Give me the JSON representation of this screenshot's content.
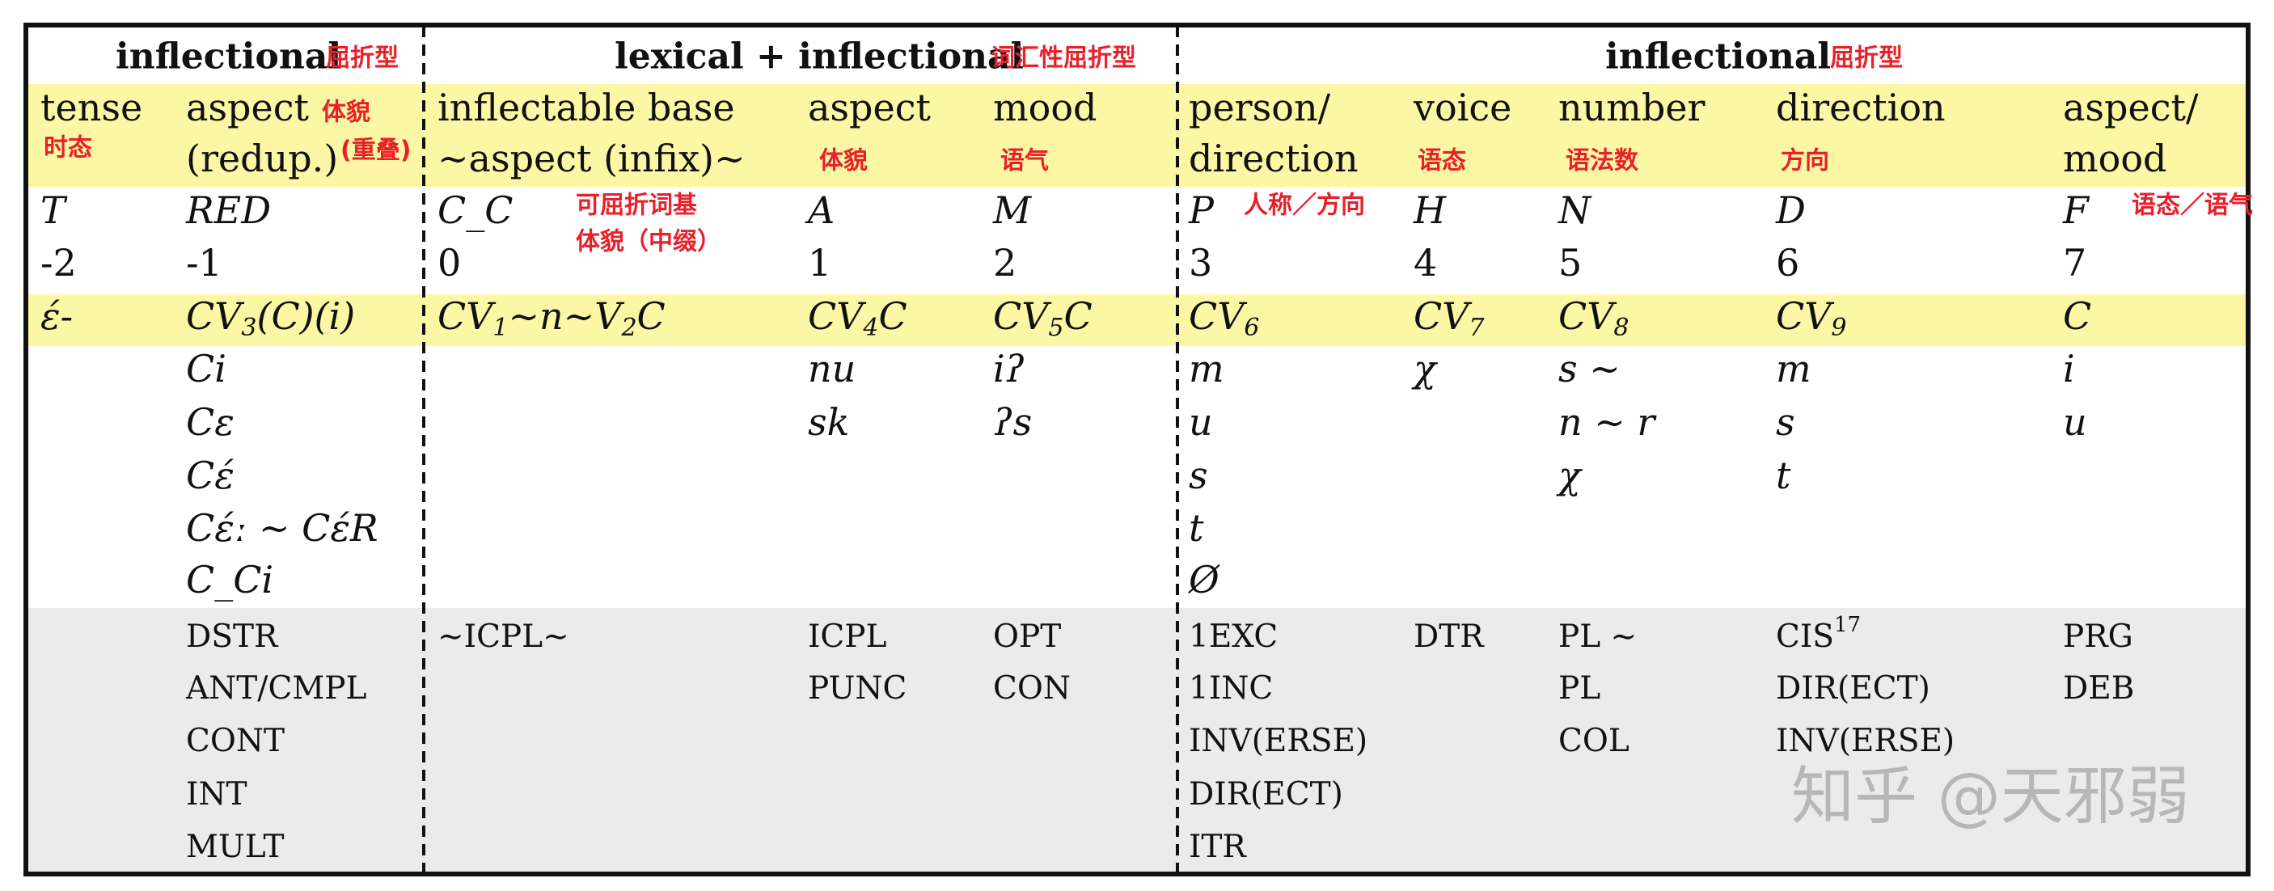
{
  "header_groups": [
    {
      "label": "inflectional",
      "note": "屈折型"
    },
    {
      "label": "lexical + inflectional",
      "note": "词汇性屈折型"
    },
    {
      "label": "inflectional",
      "note": "屈折型"
    }
  ],
  "columns": [
    {
      "name": [
        "tense"
      ],
      "notes": [
        "时态"
      ],
      "symbol": "T",
      "position": -2,
      "form": [
        "έ-"
      ]
    },
    {
      "name": [
        "aspect",
        "(redup.)"
      ],
      "notes": [
        "体貌",
        "(重叠)"
      ],
      "symbol": "RED",
      "position": -1,
      "form": [
        "CV",
        "3",
        "(C)(i)"
      ],
      "morphemes": [
        "Ci",
        "Cε",
        "Cέ",
        "Cέː ∼ CέR",
        "C_Ci"
      ],
      "glosses": [
        "DSTR",
        "ANT/CMPL",
        "CONT",
        "INT",
        "MULT"
      ]
    },
    {
      "name": [
        "inflectable base",
        "∼aspect (infix)∼"
      ],
      "notes": [
        "可屈折词基",
        "体貌（中缀）"
      ],
      "symbol": "C_C",
      "position": 0,
      "form": [
        "CV",
        "1",
        "∼n∼V",
        "2",
        "C"
      ],
      "glosses": [
        "∼ICPL∼"
      ]
    },
    {
      "name": [
        "aspect"
      ],
      "notes": [
        "体貌"
      ],
      "symbol": "A",
      "position": 1,
      "form": [
        "CV",
        "4",
        "C"
      ],
      "morphemes": [
        "nu",
        "sk"
      ],
      "glosses": [
        "ICPL",
        "PUNC"
      ]
    },
    {
      "name": [
        "mood"
      ],
      "notes": [
        "语气"
      ],
      "symbol": "M",
      "position": 2,
      "form": [
        "CV",
        "5",
        "C"
      ],
      "morphemes": [
        "iʔ",
        "ʔs"
      ],
      "glosses": [
        "OPT",
        "CON"
      ]
    },
    {
      "name": [
        "person/",
        "direction"
      ],
      "notes": [
        "人称／方向"
      ],
      "symbol": "P",
      "position": 3,
      "form": [
        "CV",
        "6"
      ],
      "morphemes": [
        "m",
        "u",
        "s",
        "t",
        "Ø"
      ],
      "glosses": [
        "1EXC",
        "1INC",
        "INV(ERSE)",
        "DIR(ECT)",
        "ITR"
      ]
    },
    {
      "name": [
        "voice"
      ],
      "notes": [
        "语态"
      ],
      "symbol": "H",
      "position": 4,
      "form": [
        "CV",
        "7"
      ],
      "morphemes": [
        "χ"
      ],
      "glosses": [
        "DTR"
      ]
    },
    {
      "name": [
        "number"
      ],
      "notes": [
        "语法数"
      ],
      "symbol": "N",
      "position": 5,
      "form": [
        "CV",
        "8"
      ],
      "morphemes": [
        "s ∼",
        "n ∼ r",
        "χ"
      ],
      "glosses": [
        "PL ∼",
        "PL",
        "COL"
      ]
    },
    {
      "name": [
        "direction"
      ],
      "notes": [
        "方向"
      ],
      "symbol": "D",
      "position": 6,
      "form": [
        "CV",
        "9"
      ],
      "morphemes": [
        "m",
        "s",
        "t"
      ],
      "glosses": [
        {
          "text": "CIS",
          "sup": "17"
        },
        "DIR(ECT)",
        "INV(ERSE)"
      ]
    },
    {
      "name": [
        "aspect/",
        "mood"
      ],
      "notes": [
        "语态／语气"
      ],
      "symbol": "F",
      "position": 7,
      "form": [
        "C"
      ],
      "morphemes": [
        "i",
        "u"
      ],
      "glosses": [
        "PRG",
        "DEB"
      ]
    }
  ],
  "watermark": "知乎 @天邪弱"
}
